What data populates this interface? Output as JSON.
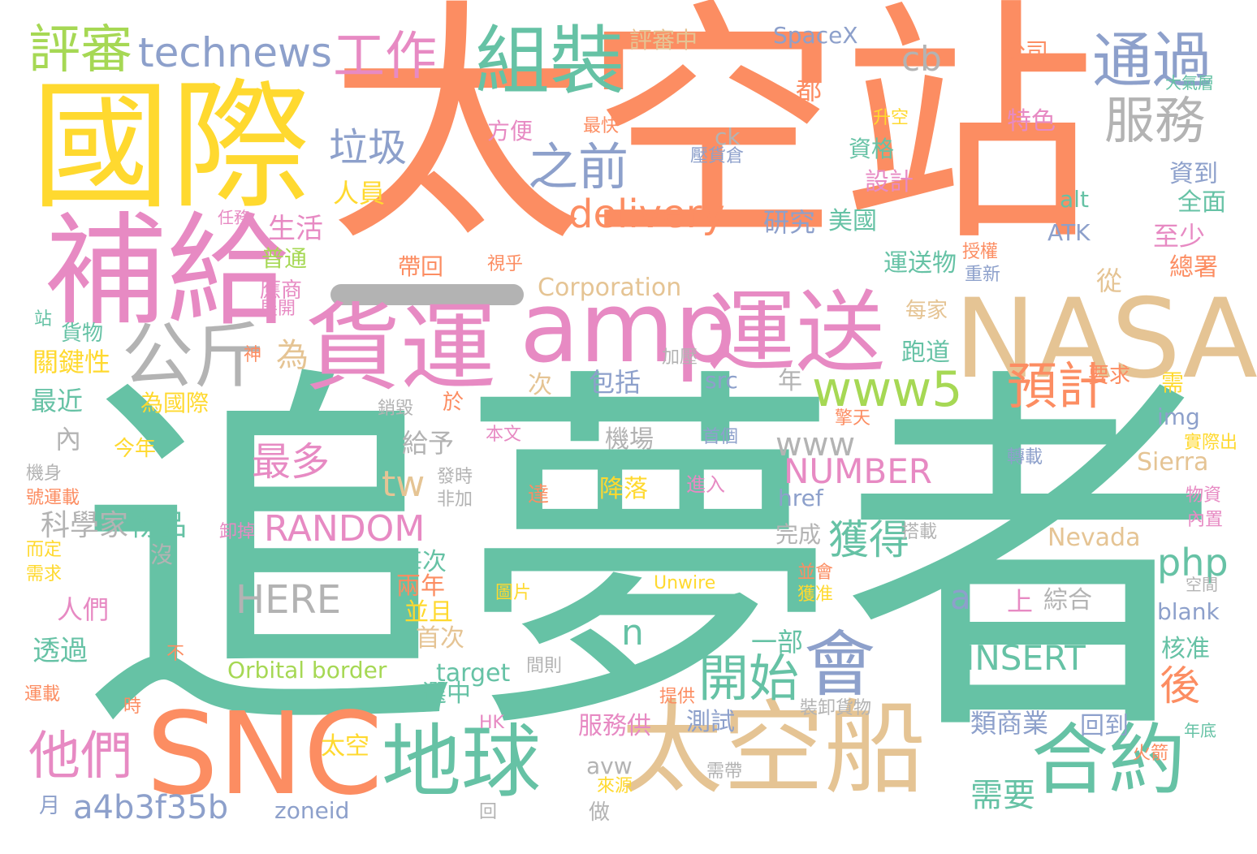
{
  "palette": {
    "orange": "#fc8d62",
    "teal": "#66c2a5",
    "yellow": "#ffd92f",
    "pink": "#e78ac3",
    "blue": "#8da0cb",
    "tan": "#e5c494",
    "green": "#a6d854",
    "gray": "#b3b3b3"
  },
  "words": [
    {
      "text": "追夢者",
      "color": "teal"
    },
    {
      "text": "太空站",
      "color": "orange"
    },
    {
      "text": "國際",
      "color": "yellow"
    },
    {
      "text": "補給",
      "color": "pink"
    },
    {
      "text": "NASA",
      "color": "tan"
    },
    {
      "text": "太空船",
      "color": "tan"
    },
    {
      "text": "SNC",
      "color": "orange"
    },
    {
      "text": "貨運",
      "color": "pink"
    },
    {
      "text": "amp",
      "color": "pink"
    },
    {
      "text": "運送",
      "color": "pink"
    },
    {
      "text": "地球",
      "color": "teal"
    },
    {
      "text": "合約",
      "color": "teal"
    },
    {
      "text": "組裝",
      "color": "teal"
    },
    {
      "text": "會",
      "color": "blue"
    },
    {
      "text": "公斤",
      "color": "gray"
    },
    {
      "text": "www5",
      "color": "green"
    },
    {
      "text": "通過",
      "color": "blue"
    },
    {
      "text": "服務",
      "color": "gray"
    },
    {
      "text": "評審",
      "color": "green"
    },
    {
      "text": "technews",
      "color": "blue"
    },
    {
      "text": "工作",
      "color": "pink"
    },
    {
      "text": "之前",
      "color": "blue"
    },
    {
      "text": "delivery",
      "color": "orange"
    },
    {
      "text": "預計",
      "color": "orange"
    },
    {
      "text": "開始",
      "color": "teal"
    },
    {
      "text": "他們",
      "color": "pink"
    },
    {
      "text": "cb",
      "color": "gray"
    },
    {
      "text": "垃圾",
      "color": "blue"
    },
    {
      "text": "最多",
      "color": "pink"
    },
    {
      "text": "RANDOM",
      "color": "pink"
    },
    {
      "text": "NUMBER",
      "color": "pink"
    },
    {
      "text": "www",
      "color": "gray"
    },
    {
      "text": "a4b3f35b",
      "color": "blue"
    },
    {
      "text": "tw",
      "color": "tan"
    },
    {
      "text": "獲得",
      "color": "teal"
    },
    {
      "text": "php",
      "color": "teal"
    },
    {
      "text": "HERE",
      "color": "gray"
    },
    {
      "text": "INSERT",
      "color": "teal"
    },
    {
      "text": "後",
      "color": "orange"
    },
    {
      "text": "為",
      "color": "tan"
    },
    {
      "text": "a",
      "color": "blue"
    },
    {
      "text": "n",
      "color": "teal"
    },
    {
      "text": "科學家",
      "color": "gray"
    },
    {
      "text": "物品",
      "color": "teal"
    },
    {
      "text": "Corporation",
      "color": "tan"
    },
    {
      "text": "Nevada",
      "color": "tan"
    },
    {
      "text": "Orbital border",
      "color": "green"
    },
    {
      "text": "Sierra",
      "color": "tan"
    },
    {
      "text": "SpaceX",
      "color": "blue"
    },
    {
      "text": "評審中",
      "color": "tan"
    },
    {
      "text": "target",
      "color": "teal"
    },
    {
      "text": "zoneid",
      "color": "blue"
    },
    {
      "text": "href",
      "color": "blue"
    },
    {
      "text": "src",
      "color": "blue"
    },
    {
      "text": "img",
      "color": "blue"
    },
    {
      "text": "blank",
      "color": "blue"
    },
    {
      "text": "alt",
      "color": "teal"
    },
    {
      "text": "ATK",
      "color": "blue"
    },
    {
      "text": "Unwire",
      "color": "yellow"
    },
    {
      "text": "avw",
      "color": "gray"
    },
    {
      "text": "ck",
      "color": "gray"
    },
    {
      "text": "HK",
      "color": "pink"
    },
    {
      "text": "人員",
      "color": "yellow"
    },
    {
      "text": "生活",
      "color": "pink"
    },
    {
      "text": "普通",
      "color": "green"
    },
    {
      "text": "應商",
      "color": "pink"
    },
    {
      "text": "展開",
      "color": "pink"
    },
    {
      "text": "貨物",
      "color": "teal"
    },
    {
      "text": "關鍵性",
      "color": "yellow"
    },
    {
      "text": "最近",
      "color": "teal"
    },
    {
      "text": "內",
      "color": "gray"
    },
    {
      "text": "今年",
      "color": "yellow"
    },
    {
      "text": "人們",
      "color": "pink"
    },
    {
      "text": "透過",
      "color": "teal"
    },
    {
      "text": "沒",
      "color": "gray"
    },
    {
      "text": "每次",
      "color": "teal"
    },
    {
      "text": "兩年",
      "color": "orange"
    },
    {
      "text": "並且",
      "color": "yellow"
    },
    {
      "text": "首次",
      "color": "tan"
    },
    {
      "text": "選中",
      "color": "teal"
    },
    {
      "text": "服務供",
      "color": "pink"
    },
    {
      "text": "測試",
      "color": "blue"
    },
    {
      "text": "太空",
      "color": "yellow"
    },
    {
      "text": "做",
      "color": "gray"
    },
    {
      "text": "包括",
      "color": "blue"
    },
    {
      "text": "機場",
      "color": "gray"
    },
    {
      "text": "給予",
      "color": "gray"
    },
    {
      "text": "於",
      "color": "orange"
    },
    {
      "text": "達",
      "color": "orange"
    },
    {
      "text": "降落",
      "color": "yellow"
    },
    {
      "text": "進入",
      "color": "pink"
    },
    {
      "text": "完成",
      "color": "gray"
    },
    {
      "text": "一部",
      "color": "teal"
    },
    {
      "text": "上",
      "color": "pink"
    },
    {
      "text": "綜合",
      "color": "gray"
    },
    {
      "text": "需要",
      "color": "teal"
    },
    {
      "text": "類商業",
      "color": "blue"
    },
    {
      "text": "回到",
      "color": "blue"
    },
    {
      "text": "核准",
      "color": "teal"
    },
    {
      "text": "研究",
      "color": "blue"
    },
    {
      "text": "美國",
      "color": "teal"
    },
    {
      "text": "運送物",
      "color": "teal"
    },
    {
      "text": "每家",
      "color": "tan"
    },
    {
      "text": "跑道",
      "color": "teal"
    },
    {
      "text": "總署",
      "color": "orange"
    },
    {
      "text": "從",
      "color": "tan"
    },
    {
      "text": "資格",
      "color": "teal"
    },
    {
      "text": "設計",
      "color": "pink"
    },
    {
      "text": "資到",
      "color": "blue"
    },
    {
      "text": "全面",
      "color": "teal"
    },
    {
      "text": "至少",
      "color": "pink"
    },
    {
      "text": "特色",
      "color": "pink"
    },
    {
      "text": "公司",
      "color": "orange"
    },
    {
      "text": "都",
      "color": "orange"
    },
    {
      "text": "方便",
      "color": "pink"
    },
    {
      "text": "最快",
      "color": "orange"
    },
    {
      "text": "升空",
      "color": "yellow"
    },
    {
      "text": "壓貨倉",
      "color": "blue"
    },
    {
      "text": "帶回",
      "color": "orange"
    },
    {
      "text": "視乎",
      "color": "orange"
    },
    {
      "text": "要求",
      "color": "orange"
    },
    {
      "text": "需",
      "color": "yellow"
    },
    {
      "text": "年",
      "color": "gray"
    },
    {
      "text": "次",
      "color": "tan"
    },
    {
      "text": "加壓",
      "color": "gray"
    },
    {
      "text": "為國際",
      "color": "yellow"
    },
    {
      "text": "銷毀",
      "color": "gray"
    },
    {
      "text": "本文",
      "color": "pink"
    },
    {
      "text": "首個",
      "color": "blue"
    },
    {
      "text": "實際出",
      "color": "yellow"
    },
    {
      "text": "發時",
      "color": "gray"
    },
    {
      "text": "非加",
      "color": "gray"
    },
    {
      "text": "卸掉",
      "color": "pink"
    },
    {
      "text": "轉載",
      "color": "blue"
    },
    {
      "text": "擎天",
      "color": "orange"
    },
    {
      "text": "搭載",
      "color": "gray"
    },
    {
      "text": "圖片",
      "color": "yellow"
    },
    {
      "text": "間則",
      "color": "gray"
    },
    {
      "text": "提供",
      "color": "orange"
    },
    {
      "text": "裝卸貨物",
      "color": "gray"
    },
    {
      "text": "並會",
      "color": "orange"
    },
    {
      "text": "獲准",
      "color": "yellow"
    },
    {
      "text": "空間",
      "color": "gray"
    },
    {
      "text": "大氣層",
      "color": "teal"
    },
    {
      "text": "授權",
      "color": "orange"
    },
    {
      "text": "重新",
      "color": "blue"
    },
    {
      "text": "物資",
      "color": "pink"
    },
    {
      "text": "內置",
      "color": "pink"
    },
    {
      "text": "年底",
      "color": "teal"
    },
    {
      "text": "火箭",
      "color": "orange"
    },
    {
      "text": "需帶",
      "color": "gray"
    },
    {
      "text": "來源",
      "color": "yellow"
    },
    {
      "text": "回",
      "color": "gray"
    },
    {
      "text": "月",
      "color": "blue"
    },
    {
      "text": "時",
      "color": "orange"
    },
    {
      "text": "不",
      "color": "orange"
    },
    {
      "text": "神",
      "color": "orange"
    },
    {
      "text": "站",
      "color": "teal"
    },
    {
      "text": "任務",
      "color": "pink"
    },
    {
      "text": "機身",
      "color": "gray"
    },
    {
      "text": "號運載",
      "color": "orange"
    },
    {
      "text": "而定",
      "color": "yellow"
    },
    {
      "text": "需求",
      "color": "yellow"
    },
    {
      "text": "運載",
      "color": "orange"
    }
  ]
}
